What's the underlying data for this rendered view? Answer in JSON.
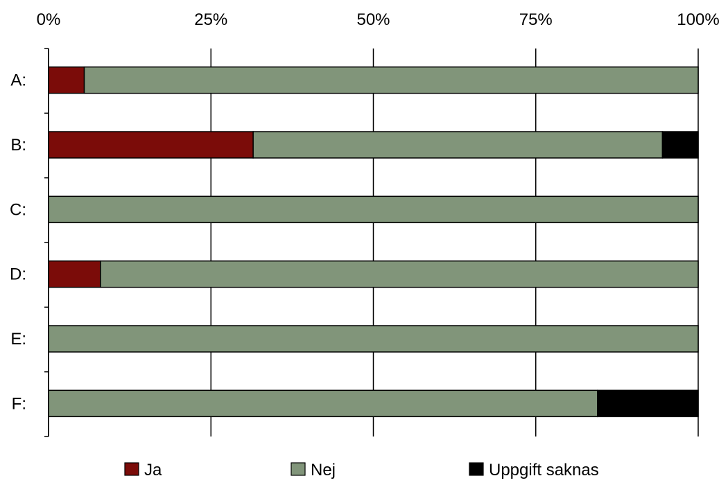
{
  "chart_data": {
    "type": "bar",
    "orientation": "horizontal",
    "stacked": true,
    "normalized_percent": true,
    "categories": [
      "A:",
      "B:",
      "C:",
      "D:",
      "E:",
      "F:"
    ],
    "series": [
      {
        "name": "Ja",
        "color": "#7b0c09",
        "values": [
          5.5,
          31.5,
          0,
          8,
          0,
          0
        ]
      },
      {
        "name": "Nej",
        "color": "#81957a",
        "values": [
          94.5,
          63,
          100,
          92,
          100,
          84.5
        ]
      },
      {
        "name": "Uppgift saknas",
        "color": "#000000",
        "values": [
          0,
          5.5,
          0,
          0,
          0,
          15.5
        ]
      }
    ],
    "x_ticks": [
      "0%",
      "25%",
      "50%",
      "75%",
      "100%"
    ],
    "xlim": [
      0,
      100
    ],
    "x_axis_position": "top",
    "grid": "vertical",
    "legend_position": "bottom"
  }
}
